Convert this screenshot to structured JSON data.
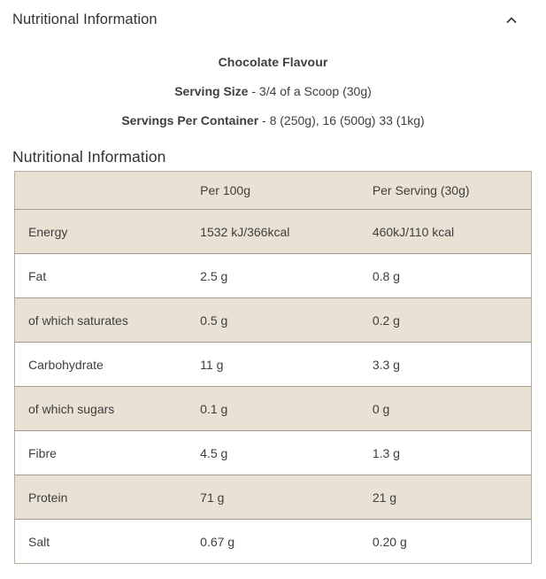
{
  "accordion": {
    "title": "Nutritional Information",
    "chevron_icon": "chevron-up"
  },
  "intro": {
    "flavour": "Chocolate Flavour",
    "serving_size": {
      "label": "Serving Size",
      "rest": " - 3/4 of a Scoop (30g)"
    },
    "servings_per_container": {
      "label": "Servings Per Container",
      "rest": " - 8 (250g), 16 (500g) 33 (1kg)"
    }
  },
  "section": {
    "heading": "Nutritional Information"
  },
  "table": {
    "columns": [
      "",
      "Per 100g",
      "Per Serving (30g)"
    ],
    "rows": [
      {
        "label": "Energy",
        "per100g": "1532 kJ/366kcal",
        "perServing": "460kJ/110 kcal"
      },
      {
        "label": "Fat",
        "per100g": "2.5 g",
        "perServing": "0.8 g"
      },
      {
        "label": "of which saturates",
        "per100g": "0.5 g",
        "perServing": "0.2 g"
      },
      {
        "label": "Carbohydrate",
        "per100g": "11 g",
        "perServing": "3.3 g"
      },
      {
        "label": "of which sugars",
        "per100g": "0.1 g",
        "perServing": "0 g"
      },
      {
        "label": "Fibre",
        "per100g": "4.5 g",
        "perServing": "1.3 g"
      },
      {
        "label": "Protein",
        "per100g": "71 g",
        "perServing": "21 g"
      },
      {
        "label": "Salt",
        "per100g": "0.67 g",
        "perServing": "0.20 g"
      }
    ]
  },
  "colors": {
    "row_shade": "#e9e2d4",
    "row_alt": "#ffffff",
    "border_outer": "#b6afa2",
    "border_inner": "#a39d93",
    "heading_text": "#333333",
    "body_text": "#3e3e3e"
  }
}
